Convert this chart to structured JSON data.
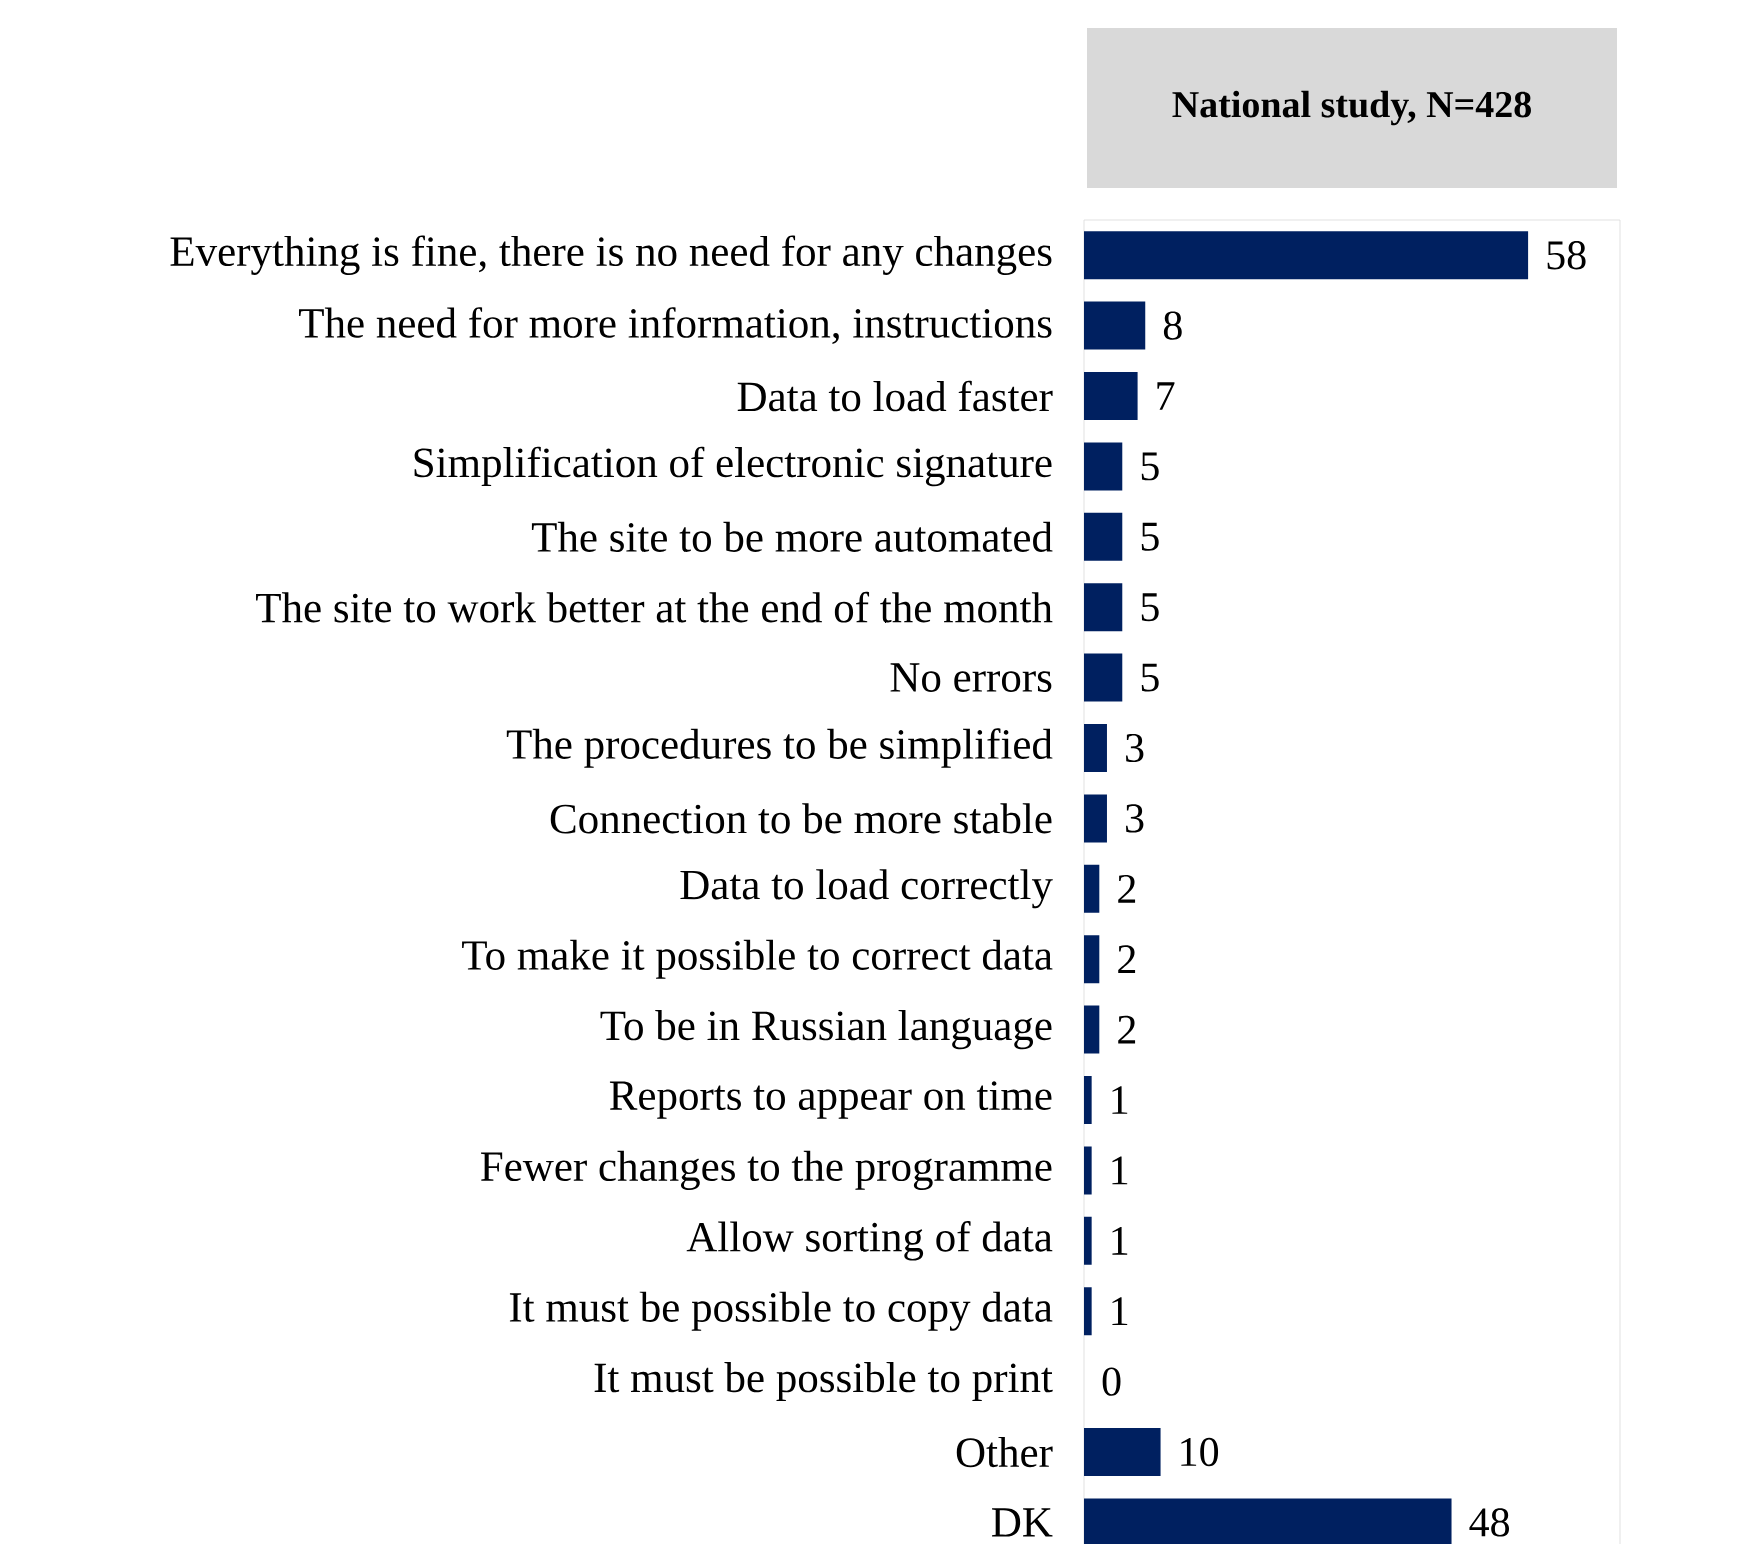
{
  "chart_data": {
    "type": "bar",
    "orientation": "horizontal",
    "title": "National study, N=428",
    "categories": [
      "Everything is fine, there is no need for any changes",
      "The need for more information, instructions",
      "Data to load faster",
      "Simplification of electronic signature",
      "The site to be more automated",
      "The site to work better at the end of the month",
      "No errors",
      "The procedures to be simplified",
      "Connection to be more stable",
      "Data to load correctly",
      "To make it possible to correct data",
      "To be in Russian language",
      "Reports to appear on time",
      "Fewer changes to the programme",
      "Allow sorting of data",
      "It must be possible to copy data",
      "It must be possible to print",
      "Other",
      "DK"
    ],
    "values": [
      58,
      8,
      7,
      5,
      5,
      5,
      5,
      3,
      3,
      2,
      2,
      2,
      1,
      1,
      1,
      1,
      0,
      10,
      48
    ],
    "color": "#002060",
    "xlim": [
      0,
      70
    ],
    "data_labels": true
  }
}
